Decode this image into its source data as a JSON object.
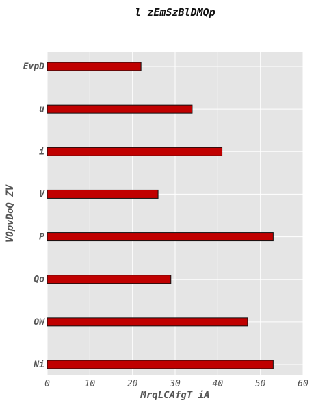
{
  "chart_data": {
    "type": "bar",
    "orientation": "horizontal",
    "title": "l zEmSzBlDMQp",
    "xlabel": "MrqLCAfgT iA",
    "ylabel": "VOpvDoQ ZV",
    "categories": [
      "Ni",
      "OW",
      "Qo",
      "P",
      "V",
      "i",
      "u",
      "EvpD"
    ],
    "values": [
      53,
      47,
      29,
      53,
      26,
      41,
      34,
      22
    ],
    "xlim": [
      0,
      60
    ],
    "xticks": [
      "0",
      "10",
      "20",
      "30",
      "40",
      "50",
      "60"
    ],
    "grid": true,
    "legend": "none",
    "colors": {
      "bar_fill": "#c00000",
      "bar_edge": "#111111",
      "plot_background": "#e5e5e5",
      "grid": "#ffffff",
      "text": "#555555"
    }
  }
}
